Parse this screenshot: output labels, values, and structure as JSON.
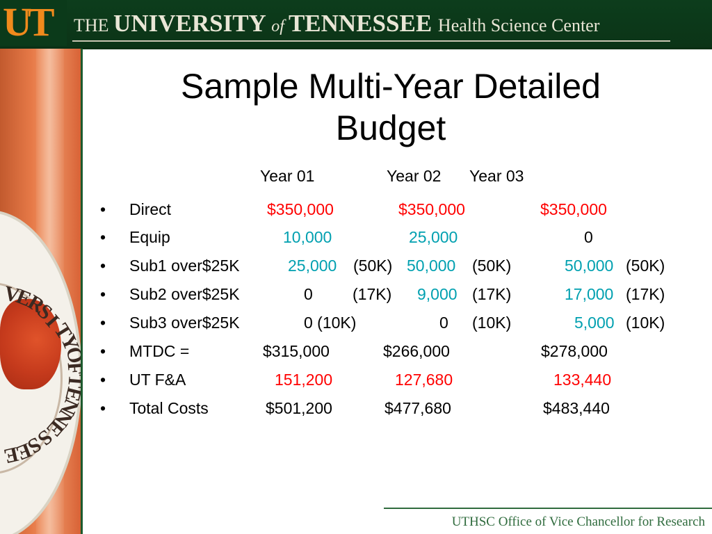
{
  "header": {
    "logo_text": "UT",
    "title_the": "THE ",
    "title_university": "UNIVERSITY ",
    "title_of": "of ",
    "title_tennessee": "TENNESSEE ",
    "title_hsc": "Health Science Center"
  },
  "seal": {
    "letters": [
      "V",
      "E",
      "R",
      "S",
      "I",
      "T",
      "Y",
      "O",
      "F",
      "T",
      "E",
      "N",
      "N",
      "E",
      "S",
      "S",
      "E",
      "E"
    ]
  },
  "slide": {
    "title_line1": "Sample Multi-Year Detailed",
    "title_line2": "Budget",
    "years": [
      "Year 01",
      "Year 02",
      "Year 03"
    ]
  },
  "rows": [
    {
      "bullet": "•",
      "label": "Direct",
      "v1": "$350,000",
      "v2": "$350,000",
      "v3": "$350,000"
    },
    {
      "bullet": "•",
      "label": "Equip",
      "v1": "10,000",
      "v2": "25,000",
      "v3": "0"
    },
    {
      "bullet": "•",
      "label": "Sub1 over$25K",
      "v1": "25,000",
      "p1": "(50K)",
      "v2": "50,000",
      "p2": "(50K)",
      "v3": "50,000",
      "p3": "(50K)"
    },
    {
      "bullet": "•",
      "label": "Sub2 over$25K",
      "v1": "0",
      "p1": "(17K)",
      "v2": "9,000",
      "p2": "(17K)",
      "v3": "17,000",
      "p3": "(17K)"
    },
    {
      "bullet": "•",
      "label": "Sub3 over$25K",
      "v1": "0 (10K)",
      "v2": "0",
      "p2": "(10K)",
      "v3": "5,000",
      "p3": "(10K)"
    },
    {
      "bullet": "•",
      "label": "MTDC =",
      "v1": "$315,000",
      "v2": "$266,000",
      "v3": "$278,000"
    },
    {
      "bullet": "•",
      "label": "UT F&A",
      "v1": "151,200",
      "v2": "127,680",
      "v3": "133,440"
    },
    {
      "bullet": "•",
      "label": "Total Costs",
      "v1": "$501,200",
      "v2": "$477,680",
      "v3": "$483,440"
    }
  ],
  "footer": {
    "text": "UTHSC Office of Vice Chancellor for Research"
  },
  "colors": {
    "header_bg": "#0b3417",
    "logo_orange": "#f08a1c",
    "red_values": "#ff0000",
    "teal_values": "#00a0b0",
    "footer_green": "#2f6b3d"
  }
}
